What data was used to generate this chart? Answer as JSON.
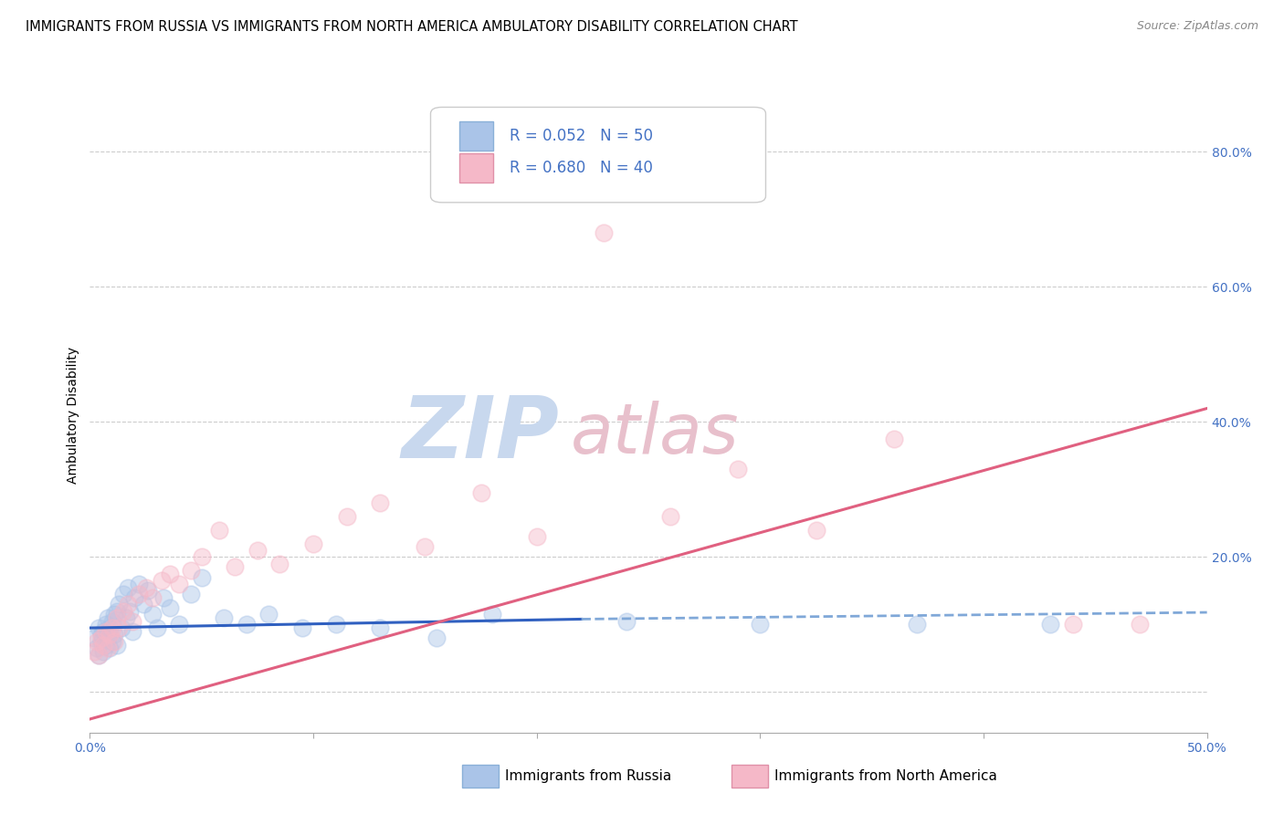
{
  "title": "IMMIGRANTS FROM RUSSIA VS IMMIGRANTS FROM NORTH AMERICA AMBULATORY DISABILITY CORRELATION CHART",
  "source": "Source: ZipAtlas.com",
  "ylabel": "Ambulatory Disability",
  "legend_label_1": "Immigrants from Russia",
  "legend_label_2": "Immigrants from North America",
  "legend_R1": "R = 0.052",
  "legend_N1": "N = 50",
  "legend_R2": "R = 0.680",
  "legend_N2": "N = 40",
  "color_blue": "#aac4e8",
  "color_pink": "#f5b8c8",
  "color_blue_line": "#3060c0",
  "color_pink_line": "#e06080",
  "color_blue_dashed": "#80a8d8",
  "color_axis_label": "#4472c4",
  "xlim": [
    0.0,
    0.5
  ],
  "ylim": [
    -0.06,
    0.88
  ],
  "yticks": [
    0.0,
    0.2,
    0.4,
    0.6,
    0.8
  ],
  "ytick_labels": [
    "",
    "20.0%",
    "40.0%",
    "60.0%",
    "80.0%"
  ],
  "blue_scatter_x": [
    0.002,
    0.003,
    0.004,
    0.004,
    0.005,
    0.005,
    0.006,
    0.006,
    0.007,
    0.007,
    0.008,
    0.008,
    0.009,
    0.009,
    0.01,
    0.01,
    0.011,
    0.011,
    0.012,
    0.012,
    0.013,
    0.014,
    0.015,
    0.016,
    0.017,
    0.018,
    0.019,
    0.02,
    0.022,
    0.024,
    0.026,
    0.028,
    0.03,
    0.033,
    0.036,
    0.04,
    0.045,
    0.05,
    0.06,
    0.07,
    0.08,
    0.095,
    0.11,
    0.13,
    0.155,
    0.18,
    0.24,
    0.3,
    0.37,
    0.43
  ],
  "blue_scatter_y": [
    0.08,
    0.065,
    0.055,
    0.095,
    0.075,
    0.085,
    0.06,
    0.09,
    0.07,
    0.1,
    0.08,
    0.11,
    0.065,
    0.095,
    0.075,
    0.105,
    0.085,
    0.115,
    0.07,
    0.12,
    0.13,
    0.095,
    0.145,
    0.11,
    0.155,
    0.12,
    0.09,
    0.14,
    0.16,
    0.13,
    0.15,
    0.115,
    0.095,
    0.14,
    0.125,
    0.1,
    0.145,
    0.17,
    0.11,
    0.1,
    0.115,
    0.095,
    0.1,
    0.095,
    0.08,
    0.115,
    0.105,
    0.1,
    0.1,
    0.1
  ],
  "pink_scatter_x": [
    0.002,
    0.003,
    0.004,
    0.005,
    0.006,
    0.007,
    0.008,
    0.009,
    0.01,
    0.011,
    0.012,
    0.013,
    0.015,
    0.017,
    0.019,
    0.022,
    0.025,
    0.028,
    0.032,
    0.036,
    0.04,
    0.045,
    0.05,
    0.058,
    0.065,
    0.075,
    0.085,
    0.1,
    0.115,
    0.13,
    0.15,
    0.175,
    0.2,
    0.23,
    0.26,
    0.29,
    0.325,
    0.36,
    0.44,
    0.47
  ],
  "pink_scatter_y": [
    0.06,
    0.075,
    0.055,
    0.08,
    0.07,
    0.09,
    0.065,
    0.085,
    0.095,
    0.075,
    0.11,
    0.095,
    0.12,
    0.13,
    0.105,
    0.145,
    0.155,
    0.14,
    0.165,
    0.175,
    0.16,
    0.18,
    0.2,
    0.24,
    0.185,
    0.21,
    0.19,
    0.22,
    0.26,
    0.28,
    0.215,
    0.295,
    0.23,
    0.68,
    0.26,
    0.33,
    0.24,
    0.375,
    0.1,
    0.1
  ],
  "blue_solid_line_x": [
    0.0,
    0.22
  ],
  "blue_solid_line_y": [
    0.095,
    0.108
  ],
  "blue_dashed_line_x": [
    0.22,
    0.5
  ],
  "blue_dashed_line_y": [
    0.108,
    0.118
  ],
  "pink_line_x": [
    0.0,
    0.5
  ],
  "pink_line_y": [
    -0.04,
    0.42
  ],
  "watermark_zip": "ZIP",
  "watermark_atlas": "atlas",
  "watermark_color_zip": "#c8d8ee",
  "watermark_color_atlas": "#e8c0cc",
  "background_color": "#ffffff",
  "grid_color": "#cccccc",
  "title_fontsize": 10.5,
  "axis_fontsize": 10,
  "tick_fontsize": 10,
  "scatter_size": 180,
  "scatter_alpha": 0.45
}
